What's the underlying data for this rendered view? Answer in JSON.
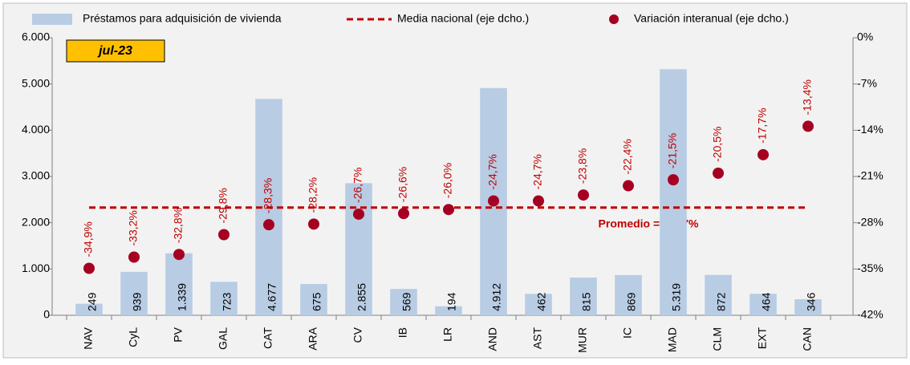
{
  "chart_data": {
    "type": "combo",
    "date_label": "jul-23",
    "categories": [
      "NAV",
      "CyL",
      "PV",
      "GAL",
      "CAT",
      "ARA",
      "CV",
      "IB",
      "LR",
      "AND",
      "AST",
      "MUR",
      "IC",
      "MAD",
      "CLM",
      "EXT",
      "CAN"
    ],
    "series": [
      {
        "name": "Préstamos para adquisición de vivienda",
        "type": "bar",
        "color": "#b8cce4",
        "values": [
          249,
          939,
          1339,
          723,
          4677,
          675,
          2855,
          569,
          194,
          4912,
          462,
          815,
          869,
          5319,
          872,
          464,
          346
        ],
        "value_labels": [
          "249",
          "939",
          "1.339",
          "723",
          "4.677",
          "675",
          "2.855",
          "569",
          "194",
          "4.912",
          "462",
          "815",
          "869",
          "5.319",
          "872",
          "464",
          "346"
        ]
      },
      {
        "name": "Media nacional (eje dcho.)",
        "type": "line",
        "color": "#c00000",
        "axis": "y2",
        "values": [
          -25.7,
          -25.7,
          -25.7,
          -25.7,
          -25.7,
          -25.7,
          -25.7,
          -25.7,
          -25.7,
          -25.7,
          -25.7,
          -25.7,
          -25.7,
          -25.7,
          -25.7,
          -25.7,
          -25.7
        ]
      },
      {
        "name": "Variación interanual (eje dcho.)",
        "type": "scatter",
        "color": "#a50021",
        "axis": "y2",
        "values": [
          -34.9,
          -33.2,
          -32.8,
          -29.8,
          -28.3,
          -28.2,
          -26.7,
          -26.6,
          -26.0,
          -24.7,
          -24.7,
          -23.8,
          -22.4,
          -21.5,
          -20.5,
          -17.7,
          -13.4
        ],
        "value_labels": [
          "-34,9%",
          "-33,2%",
          "-32,8%",
          "-29,8%",
          "-28,3%",
          "-28,2%",
          "-26,7%",
          "-26,6%",
          "-26,0%",
          "-24,7%",
          "-24,7%",
          "-23,8%",
          "-22,4%",
          "-21,5%",
          "-20,5%",
          "-17,7%",
          "-13,4%"
        ]
      }
    ],
    "annotation": "Promedio = -25,7%",
    "ylim": [
      0,
      6000
    ],
    "yticks": [
      0,
      {
        "value": 1000,
        "label": "1.000"
      },
      {
        "value": 2000,
        "label": "2.000"
      },
      {
        "value": 3000,
        "label": "3.000"
      },
      {
        "value": 4000,
        "label": "4.000"
      },
      {
        "value": 5000,
        "label": "5.000"
      },
      {
        "value": 6000,
        "label": "6.000"
      }
    ],
    "y2lim": [
      -42,
      0
    ],
    "y2ticks": [
      {
        "value": 0,
        "label": "0%"
      },
      {
        "value": -7,
        "label": "-7%"
      },
      {
        "value": -14,
        "label": "-14%"
      },
      {
        "value": -21,
        "label": "-21%"
      },
      {
        "value": -28,
        "label": "-28%"
      },
      {
        "value": -35,
        "label": "-35%"
      },
      {
        "value": -42,
        "label": "-42%"
      }
    ],
    "grid": false
  }
}
